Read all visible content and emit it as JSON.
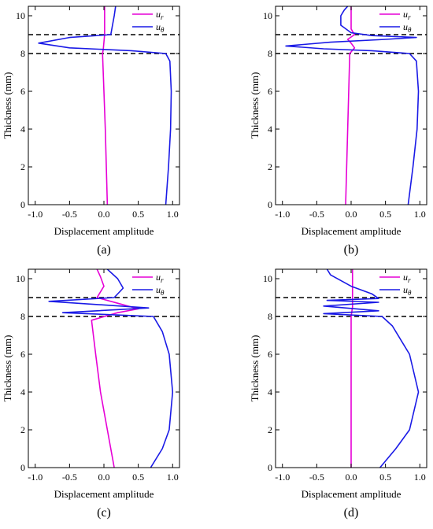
{
  "figure": {
    "panel_labels": [
      "(a)",
      "(b)",
      "(c)",
      "(d)"
    ]
  },
  "colors": {
    "u_r": "#e600d6",
    "u_theta": "#1a1ae6",
    "reference_lines": "#000000"
  },
  "chart_data": [
    {
      "type": "line",
      "label": "(a)",
      "xlabel": "Displacement amplitude",
      "ylabel": "Thickness (mm)",
      "xlim": [
        -1.1,
        1.1
      ],
      "ylim": [
        0,
        10.5
      ],
      "xticks": [
        -1.0,
        -0.5,
        0.0,
        0.5,
        1.0
      ],
      "xtick_labels": [
        "-1.0",
        "-0.5",
        "0.0",
        "0.5",
        "1.0"
      ],
      "yticks": [
        0,
        2,
        4,
        6,
        8,
        10
      ],
      "ytick_labels": [
        "0",
        "2",
        "4",
        "6",
        "8",
        "10"
      ],
      "reference_lines_y": [
        8,
        9
      ],
      "legend": {
        "position": "top-right",
        "entries": [
          {
            "main": "u",
            "sub": "r"
          },
          {
            "main": "u",
            "sub": "θ"
          }
        ]
      },
      "series": [
        {
          "key": "u_r",
          "points": [
            [
              0.05,
              0
            ],
            [
              0.02,
              4
            ],
            [
              -0.02,
              8
            ],
            [
              -0.01,
              8.2
            ],
            [
              0.0,
              8.6
            ],
            [
              0.01,
              9
            ],
            [
              0.01,
              10.5
            ]
          ]
        },
        {
          "key": "u_theta",
          "points": [
            [
              0.9,
              0
            ],
            [
              0.94,
              2
            ],
            [
              0.97,
              4
            ],
            [
              0.98,
              6
            ],
            [
              0.96,
              7.6
            ],
            [
              0.9,
              8.0
            ],
            [
              0.4,
              8.15
            ],
            [
              -0.5,
              8.3
            ],
            [
              -0.95,
              8.55
            ],
            [
              -0.5,
              8.85
            ],
            [
              0.1,
              9.0
            ],
            [
              0.12,
              9.4
            ],
            [
              0.15,
              10.0
            ],
            [
              0.17,
              10.5
            ]
          ]
        }
      ]
    },
    {
      "type": "line",
      "label": "(b)",
      "xlabel": "Displacement amplitude",
      "ylabel": "Thickness (mm)",
      "xlim": [
        -1.1,
        1.1
      ],
      "ylim": [
        0,
        10.5
      ],
      "xticks": [
        -1.0,
        -0.5,
        0.0,
        0.5,
        1.0
      ],
      "xtick_labels": [
        "-1.0",
        "-0.5",
        "0.0",
        "0.5",
        "1.0"
      ],
      "yticks": [
        0,
        2,
        4,
        6,
        8,
        10
      ],
      "ytick_labels": [
        "0",
        "2",
        "4",
        "6",
        "8",
        "10"
      ],
      "reference_lines_y": [
        8,
        9
      ],
      "legend": {
        "position": "top-right",
        "entries": [
          {
            "main": "u",
            "sub": "r"
          },
          {
            "main": "u",
            "sub": "θ"
          }
        ]
      },
      "series": [
        {
          "key": "u_r",
          "points": [
            [
              -0.08,
              0
            ],
            [
              -0.05,
              4
            ],
            [
              -0.02,
              8
            ],
            [
              0.05,
              8.3
            ],
            [
              0.0,
              8.55
            ],
            [
              -0.05,
              8.75
            ],
            [
              0.05,
              9.0
            ],
            [
              0.0,
              9.3
            ],
            [
              0.0,
              10.5
            ]
          ]
        },
        {
          "key": "u_theta",
          "points": [
            [
              0.83,
              0
            ],
            [
              0.9,
              2
            ],
            [
              0.96,
              4
            ],
            [
              0.98,
              6
            ],
            [
              0.95,
              7.6
            ],
            [
              0.85,
              8.0
            ],
            [
              0.3,
              8.15
            ],
            [
              -0.4,
              8.25
            ],
            [
              -0.95,
              8.4
            ],
            [
              -0.3,
              8.6
            ],
            [
              0.5,
              8.75
            ],
            [
              0.95,
              8.85
            ],
            [
              0.3,
              8.95
            ],
            [
              0.0,
              9.1
            ],
            [
              -0.15,
              9.5
            ],
            [
              -0.15,
              10.0
            ],
            [
              -0.1,
              10.3
            ],
            [
              -0.05,
              10.5
            ]
          ]
        }
      ]
    },
    {
      "type": "line",
      "label": "(c)",
      "xlabel": "Displacement amplitude",
      "ylabel": "Thickness (mm)",
      "xlim": [
        -1.1,
        1.1
      ],
      "ylim": [
        0,
        10.5
      ],
      "xticks": [
        -1.0,
        -0.5,
        0.0,
        0.5,
        1.0
      ],
      "xtick_labels": [
        "-1.0",
        "-0.5",
        "0.0",
        "0.5",
        "1.0"
      ],
      "yticks": [
        0,
        2,
        4,
        6,
        8,
        10
      ],
      "ytick_labels": [
        "0",
        "2",
        "4",
        "6",
        "8",
        "10"
      ],
      "reference_lines_y": [
        8,
        9
      ],
      "legend": {
        "position": "top-right",
        "entries": [
          {
            "main": "u",
            "sub": "r"
          },
          {
            "main": "u",
            "sub": "θ"
          }
        ]
      },
      "series": [
        {
          "key": "u_r",
          "points": [
            [
              0.15,
              0
            ],
            [
              0.05,
              2
            ],
            [
              -0.05,
              4
            ],
            [
              -0.12,
              6
            ],
            [
              -0.18,
              7.8
            ],
            [
              0.2,
              8.2
            ],
            [
              0.5,
              8.4
            ],
            [
              0.2,
              8.7
            ],
            [
              -0.1,
              9.0
            ],
            [
              0.0,
              9.6
            ],
            [
              -0.05,
              10.1
            ],
            [
              -0.1,
              10.5
            ]
          ]
        },
        {
          "key": "u_theta",
          "points": [
            [
              0.68,
              0
            ],
            [
              0.85,
              1
            ],
            [
              0.95,
              2
            ],
            [
              1.0,
              4
            ],
            [
              0.95,
              6
            ],
            [
              0.85,
              7.2
            ],
            [
              0.72,
              8.0
            ],
            [
              -0.6,
              8.2
            ],
            [
              0.65,
              8.45
            ],
            [
              -0.8,
              8.8
            ],
            [
              0.15,
              9.0
            ],
            [
              0.28,
              9.5
            ],
            [
              0.2,
              10.0
            ],
            [
              0.05,
              10.5
            ]
          ]
        }
      ]
    },
    {
      "type": "line",
      "label": "(d)",
      "xlabel": "Displacement amplitude",
      "ylabel": "Thickness (mm)",
      "xlim": [
        -1.1,
        1.1
      ],
      "ylim": [
        0,
        10.5
      ],
      "xticks": [
        -1.0,
        -0.5,
        0.0,
        0.5,
        1.0
      ],
      "xtick_labels": [
        "-1.0",
        "-0.5",
        "0.0",
        "0.5",
        "1.0"
      ],
      "yticks": [
        0,
        2,
        4,
        6,
        8,
        10
      ],
      "ytick_labels": [
        "0",
        "2",
        "4",
        "6",
        "8",
        "10"
      ],
      "reference_lines_y": [
        8,
        9
      ],
      "legend": {
        "position": "top-right",
        "entries": [
          {
            "main": "u",
            "sub": "r"
          },
          {
            "main": "u",
            "sub": "θ"
          }
        ]
      },
      "series": [
        {
          "key": "u_r",
          "points": [
            [
              0.0,
              0
            ],
            [
              0.0,
              4
            ],
            [
              0.0,
              8
            ],
            [
              0.02,
              8.5
            ],
            [
              0.02,
              9
            ],
            [
              0.02,
              10.5
            ]
          ]
        },
        {
          "key": "u_theta",
          "points": [
            [
              0.42,
              0
            ],
            [
              0.65,
              1
            ],
            [
              0.85,
              2
            ],
            [
              0.98,
              4
            ],
            [
              0.85,
              6
            ],
            [
              0.6,
              7.5
            ],
            [
              0.45,
              8.0
            ],
            [
              -0.4,
              8.15
            ],
            [
              0.4,
              8.3
            ],
            [
              -0.4,
              8.55
            ],
            [
              0.4,
              8.75
            ],
            [
              -0.35,
              8.85
            ],
            [
              0.4,
              8.95
            ],
            [
              0.3,
              9.2
            ],
            [
              0.0,
              9.6
            ],
            [
              -0.3,
              10.2
            ],
            [
              -0.35,
              10.5
            ]
          ]
        }
      ]
    }
  ]
}
